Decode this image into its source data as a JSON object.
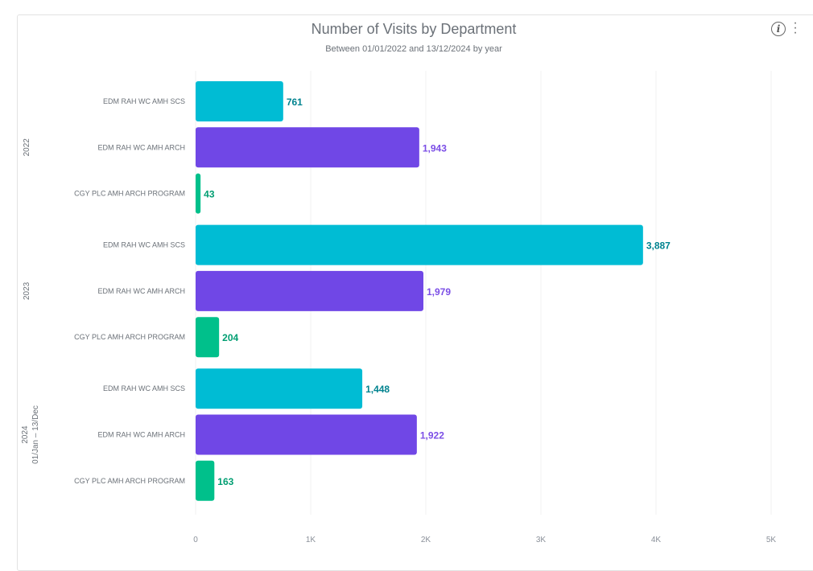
{
  "header": {
    "title": "Number of Visits by Department",
    "subtitle": "Between 01/01/2022 and 13/12/2024 by year"
  },
  "icons": {
    "info": "info-icon",
    "more": "more-vertical-icon"
  },
  "colors": {
    "EDM RAH WC AMH SCS": {
      "bar": "#00bcd4",
      "label": "#00838f"
    },
    "EDM RAH WC AMH ARCH": {
      "bar": "#7047e6",
      "label": "#7b4ee6"
    },
    "CGY PLC AMH ARCH PROGRAM": {
      "bar": "#00c08b",
      "label": "#009e72"
    }
  },
  "chart_data": {
    "type": "bar",
    "orientation": "horizontal",
    "title": "Number of Visits by Department",
    "subtitle": "Between 01/01/2022 and 13/12/2024 by year",
    "xlim": [
      0,
      5000
    ],
    "xticks": [
      {
        "v": 0,
        "label": "0"
      },
      {
        "v": 1000,
        "label": "1K"
      },
      {
        "v": 2000,
        "label": "2K"
      },
      {
        "v": 3000,
        "label": "3K"
      },
      {
        "v": 4000,
        "label": "4K"
      },
      {
        "v": 5000,
        "label": "5K"
      }
    ],
    "grid": true,
    "groups": [
      {
        "year": "2022",
        "sublabel": "",
        "items": [
          {
            "category": "EDM RAH WC AMH SCS",
            "value": 761,
            "label": "761"
          },
          {
            "category": "EDM RAH WC AMH ARCH",
            "value": 1943,
            "label": "1,943"
          },
          {
            "category": "CGY PLC AMH ARCH PROGRAM",
            "value": 43,
            "label": "43"
          }
        ]
      },
      {
        "year": "2023",
        "sublabel": "",
        "items": [
          {
            "category": "EDM RAH WC AMH SCS",
            "value": 3887,
            "label": "3,887"
          },
          {
            "category": "EDM RAH WC AMH ARCH",
            "value": 1979,
            "label": "1,979"
          },
          {
            "category": "CGY PLC AMH ARCH PROGRAM",
            "value": 204,
            "label": "204"
          }
        ]
      },
      {
        "year": "2024",
        "sublabel": "01/Jan – 13/Dec",
        "items": [
          {
            "category": "EDM RAH WC AMH SCS",
            "value": 1448,
            "label": "1,448"
          },
          {
            "category": "EDM RAH WC AMH ARCH",
            "value": 1922,
            "label": "1,922"
          },
          {
            "category": "CGY PLC AMH ARCH PROGRAM",
            "value": 163,
            "label": "163"
          }
        ]
      }
    ]
  }
}
